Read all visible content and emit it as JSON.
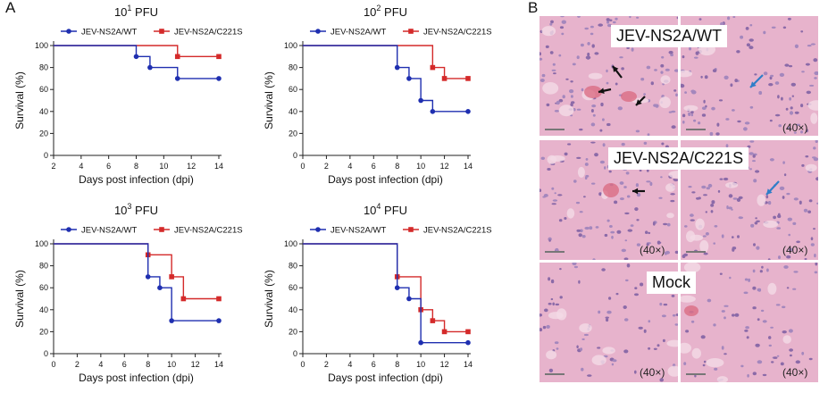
{
  "figure": {
    "panel_a_letter": "A",
    "panel_b_letter": "B"
  },
  "colors": {
    "wt": "#1f2fb0",
    "mut": "#d42a2a",
    "tissue": "#e7b3cc",
    "blue_arrow": "#2f7ec8",
    "black_arrow": "#111111"
  },
  "chart_data": [
    {
      "type": "line",
      "step": true,
      "title_base": "10",
      "title_exp": "1",
      "title_unit": " PFU",
      "xlabel": "Days post infection (dpi)",
      "ylabel": "Survival (%)",
      "xlim": [
        2,
        14
      ],
      "xticks": [
        2,
        4,
        6,
        8,
        10,
        12,
        14
      ],
      "ylim": [
        0,
        100
      ],
      "yticks": [
        0,
        20,
        40,
        60,
        80,
        100
      ],
      "legend_position": "top",
      "series": [
        {
          "name": "JEV-NS2A/WT",
          "color": "#1f2fb0",
          "marker": "circle",
          "x": [
            2,
            8,
            9,
            11,
            14
          ],
          "y": [
            100,
            90,
            80,
            70,
            70
          ]
        },
        {
          "name": "JEV-NS2A/C221S",
          "color": "#d42a2a",
          "marker": "square",
          "x": [
            2,
            11,
            14
          ],
          "y": [
            100,
            90,
            90
          ]
        }
      ]
    },
    {
      "type": "line",
      "step": true,
      "title_base": "10",
      "title_exp": "2",
      "title_unit": " PFU",
      "xlabel": "Days post infection (dpi)",
      "ylabel": "Survival (%)",
      "xlim": [
        0,
        14
      ],
      "xticks": [
        0,
        2,
        4,
        6,
        8,
        10,
        12,
        14
      ],
      "ylim": [
        0,
        100
      ],
      "yticks": [
        0,
        20,
        40,
        60,
        80,
        100
      ],
      "legend_position": "top",
      "series": [
        {
          "name": "JEV-NS2A/WT",
          "color": "#1f2fb0",
          "marker": "circle",
          "x": [
            0,
            8,
            9,
            10,
            11,
            14
          ],
          "y": [
            100,
            80,
            70,
            50,
            40,
            40
          ]
        },
        {
          "name": "JEV-NS2A/C221S",
          "color": "#d42a2a",
          "marker": "square",
          "x": [
            0,
            11,
            12,
            14
          ],
          "y": [
            100,
            80,
            70,
            70
          ]
        }
      ]
    },
    {
      "type": "line",
      "step": true,
      "title_base": "10",
      "title_exp": "3",
      "title_unit": " PFU",
      "xlabel": "Days post infection (dpi)",
      "ylabel": "Survival (%)",
      "xlim": [
        0,
        14
      ],
      "xticks": [
        0,
        2,
        4,
        6,
        8,
        10,
        12,
        14
      ],
      "ylim": [
        0,
        100
      ],
      "yticks": [
        0,
        20,
        40,
        60,
        80,
        100
      ],
      "legend_position": "top",
      "series": [
        {
          "name": "JEV-NS2A/WT",
          "color": "#1f2fb0",
          "marker": "circle",
          "x": [
            0,
            8,
            9,
            10,
            14
          ],
          "y": [
            100,
            70,
            60,
            30,
            30
          ]
        },
        {
          "name": "JEV-NS2A/C221S",
          "color": "#d42a2a",
          "marker": "square",
          "x": [
            0,
            8,
            10,
            11,
            14
          ],
          "y": [
            100,
            90,
            70,
            50,
            50
          ]
        }
      ]
    },
    {
      "type": "line",
      "step": true,
      "title_base": "10",
      "title_exp": "4",
      "title_unit": " PFU",
      "xlabel": "Days post infection (dpi)",
      "ylabel": "Survival (%)",
      "xlim": [
        0,
        14
      ],
      "xticks": [
        0,
        2,
        4,
        6,
        8,
        10,
        12,
        14
      ],
      "ylim": [
        0,
        100
      ],
      "yticks": [
        0,
        20,
        40,
        60,
        80,
        100
      ],
      "legend_position": "top",
      "series": [
        {
          "name": "JEV-NS2A/WT",
          "color": "#1f2fb0",
          "marker": "circle",
          "x": [
            0,
            8,
            9,
            10,
            14
          ],
          "y": [
            100,
            60,
            50,
            10,
            10
          ]
        },
        {
          "name": "JEV-NS2A/C221S",
          "color": "#d42a2a",
          "marker": "square",
          "x": [
            0,
            8,
            10,
            11,
            12,
            14
          ],
          "y": [
            100,
            70,
            40,
            30,
            20,
            20
          ]
        }
      ]
    }
  ],
  "histology": {
    "rows": [
      {
        "title": "JEV-NS2A/WT",
        "left_mag": "",
        "right_mag": "(40×)"
      },
      {
        "title": "JEV-NS2A/C221S",
        "left_mag": "(40×)",
        "right_mag": "(40×)"
      },
      {
        "title": "Mock",
        "left_mag": "(40×)",
        "right_mag": "(40×)"
      }
    ]
  }
}
